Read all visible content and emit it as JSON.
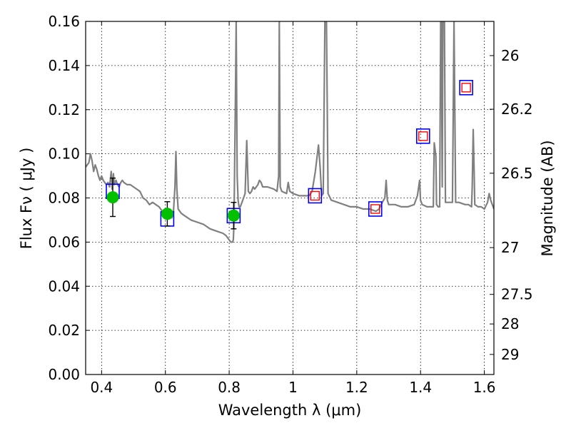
{
  "chart_data": {
    "type": "line",
    "xlabel": "Wavelength  λ (μm)",
    "ylabel": "Flux  Fν  ( μJy )",
    "ylabel_right": "Magnitude (AB)",
    "xlim": [
      0.35,
      1.63
    ],
    "ylim": [
      0,
      0.16
    ],
    "grid": true,
    "x_ticks": [
      {
        "value": 0.4,
        "label": "0.4"
      },
      {
        "value": 0.6,
        "label": "0.6"
      },
      {
        "value": 0.8,
        "label": "0.8"
      },
      {
        "value": 1.0,
        "label": "1"
      },
      {
        "value": 1.2,
        "label": "1.2"
      },
      {
        "value": 1.4,
        "label": "1.4"
      },
      {
        "value": 1.6,
        "label": "1.6"
      }
    ],
    "y_ticks": [
      {
        "value": 0.0,
        "label": "0.00"
      },
      {
        "value": 0.02,
        "label": "0.02"
      },
      {
        "value": 0.04,
        "label": "0.04"
      },
      {
        "value": 0.06,
        "label": "0.06"
      },
      {
        "value": 0.08,
        "label": "0.08"
      },
      {
        "value": 0.1,
        "label": "0.10"
      },
      {
        "value": 0.12,
        "label": "0.12"
      },
      {
        "value": 0.14,
        "label": "0.14"
      },
      {
        "value": 0.16,
        "label": "0.16"
      }
    ],
    "right_ticks": [
      {
        "label": "26",
        "flux": 0.1445
      },
      {
        "label": "26.2",
        "flux": 0.1202
      },
      {
        "label": "26.5",
        "flux": 0.0912
      },
      {
        "label": "27",
        "flux": 0.0575
      },
      {
        "label": "27.5",
        "flux": 0.0363
      },
      {
        "label": "28",
        "flux": 0.0229
      },
      {
        "label": "29",
        "flux": 0.0091
      }
    ],
    "colors": {
      "model": "#808080",
      "model_box": "#0000ff",
      "observed_box": "#0000ff",
      "detection": "#00c000",
      "upper_square": "#ff0000",
      "errorbar": "#000000"
    },
    "series": [
      {
        "kind": "model_spectrum",
        "points": [
          [
            0.35,
            0.094
          ],
          [
            0.355,
            0.095
          ],
          [
            0.36,
            0.096
          ],
          [
            0.365,
            0.1
          ],
          [
            0.37,
            0.097
          ],
          [
            0.375,
            0.092
          ],
          [
            0.38,
            0.095
          ],
          [
            0.385,
            0.093
          ],
          [
            0.39,
            0.09
          ],
          [
            0.395,
            0.088
          ],
          [
            0.4,
            0.09
          ],
          [
            0.405,
            0.088
          ],
          [
            0.41,
            0.087
          ],
          [
            0.415,
            0.086
          ],
          [
            0.42,
            0.087
          ],
          [
            0.425,
            0.085
          ],
          [
            0.43,
            0.092
          ],
          [
            0.433,
            0.084
          ],
          [
            0.437,
            0.091
          ],
          [
            0.44,
            0.086
          ],
          [
            0.445,
            0.088
          ],
          [
            0.45,
            0.086
          ],
          [
            0.455,
            0.085
          ],
          [
            0.46,
            0.087
          ],
          [
            0.465,
            0.088
          ],
          [
            0.47,
            0.087
          ],
          [
            0.48,
            0.086
          ],
          [
            0.49,
            0.086
          ],
          [
            0.5,
            0.085
          ],
          [
            0.51,
            0.084
          ],
          [
            0.52,
            0.083
          ],
          [
            0.53,
            0.08
          ],
          [
            0.54,
            0.079
          ],
          [
            0.55,
            0.077
          ],
          [
            0.56,
            0.078
          ],
          [
            0.57,
            0.077
          ],
          [
            0.58,
            0.076
          ],
          [
            0.59,
            0.074
          ],
          [
            0.6,
            0.073
          ],
          [
            0.61,
            0.072
          ],
          [
            0.62,
            0.071
          ],
          [
            0.625,
            0.073
          ],
          [
            0.63,
            0.085
          ],
          [
            0.633,
            0.101
          ],
          [
            0.636,
            0.084
          ],
          [
            0.64,
            0.075
          ],
          [
            0.65,
            0.073
          ],
          [
            0.66,
            0.072
          ],
          [
            0.68,
            0.07
          ],
          [
            0.7,
            0.069
          ],
          [
            0.72,
            0.068
          ],
          [
            0.74,
            0.066
          ],
          [
            0.76,
            0.065
          ],
          [
            0.78,
            0.064
          ],
          [
            0.79,
            0.063
          ],
          [
            0.8,
            0.061
          ],
          [
            0.805,
            0.06
          ],
          [
            0.81,
            0.06
          ],
          [
            0.813,
            0.061
          ],
          [
            0.815,
            0.068
          ],
          [
            0.818,
            0.105
          ],
          [
            0.82,
            0.13
          ],
          [
            0.822,
            0.16
          ],
          [
            0.825,
            0.09
          ],
          [
            0.828,
            0.079
          ],
          [
            0.831,
            0.076
          ],
          [
            0.835,
            0.076
          ],
          [
            0.84,
            0.078
          ],
          [
            0.845,
            0.08
          ],
          [
            0.85,
            0.082
          ],
          [
            0.855,
            0.106
          ],
          [
            0.86,
            0.083
          ],
          [
            0.865,
            0.082
          ],
          [
            0.87,
            0.083
          ],
          [
            0.875,
            0.085
          ],
          [
            0.88,
            0.084
          ],
          [
            0.89,
            0.086
          ],
          [
            0.895,
            0.088
          ],
          [
            0.9,
            0.087
          ],
          [
            0.905,
            0.085
          ],
          [
            0.92,
            0.085
          ],
          [
            0.94,
            0.084
          ],
          [
            0.95,
            0.083
          ],
          [
            0.955,
            0.09
          ],
          [
            0.957,
            0.16
          ],
          [
            0.96,
            0.085
          ],
          [
            0.965,
            0.083
          ],
          [
            0.98,
            0.082
          ],
          [
            0.985,
            0.087
          ],
          [
            0.99,
            0.083
          ],
          [
            1.0,
            0.082
          ],
          [
            1.02,
            0.081
          ],
          [
            1.05,
            0.081
          ],
          [
            1.06,
            0.083
          ],
          [
            1.07,
            0.092
          ],
          [
            1.08,
            0.104
          ],
          [
            1.085,
            0.094
          ],
          [
            1.09,
            0.081
          ],
          [
            1.095,
            0.082
          ],
          [
            1.1,
            0.16
          ],
          [
            1.105,
            0.16
          ],
          [
            1.11,
            0.082
          ],
          [
            1.12,
            0.079
          ],
          [
            1.14,
            0.078
          ],
          [
            1.16,
            0.077
          ],
          [
            1.18,
            0.076
          ],
          [
            1.2,
            0.076
          ],
          [
            1.22,
            0.075
          ],
          [
            1.24,
            0.075
          ],
          [
            1.26,
            0.074
          ],
          [
            1.27,
            0.075
          ],
          [
            1.28,
            0.078
          ],
          [
            1.288,
            0.08
          ],
          [
            1.292,
            0.088
          ],
          [
            1.296,
            0.079
          ],
          [
            1.3,
            0.077
          ],
          [
            1.32,
            0.077
          ],
          [
            1.34,
            0.076
          ],
          [
            1.36,
            0.076
          ],
          [
            1.38,
            0.077
          ],
          [
            1.39,
            0.081
          ],
          [
            1.397,
            0.088
          ],
          [
            1.4,
            0.079
          ],
          [
            1.405,
            0.077
          ],
          [
            1.42,
            0.076
          ],
          [
            1.44,
            0.076
          ],
          [
            1.443,
            0.105
          ],
          [
            1.448,
            0.099
          ],
          [
            1.45,
            0.077
          ],
          [
            1.455,
            0.076
          ],
          [
            1.46,
            0.076
          ],
          [
            1.463,
            0.16
          ],
          [
            1.465,
            0.16
          ],
          [
            1.468,
            0.085
          ],
          [
            1.47,
            0.16
          ],
          [
            1.475,
            0.16
          ],
          [
            1.478,
            0.078
          ],
          [
            1.5,
            0.078
          ],
          [
            1.505,
            0.16
          ],
          [
            1.51,
            0.078
          ],
          [
            1.52,
            0.078
          ],
          [
            1.54,
            0.077
          ],
          [
            1.55,
            0.077
          ],
          [
            1.56,
            0.076
          ],
          [
            1.562,
            0.085
          ],
          [
            1.565,
            0.111
          ],
          [
            1.568,
            0.092
          ],
          [
            1.57,
            0.077
          ],
          [
            1.58,
            0.076
          ],
          [
            1.59,
            0.076
          ],
          [
            1.6,
            0.075
          ],
          [
            1.61,
            0.078
          ],
          [
            1.615,
            0.082
          ],
          [
            1.62,
            0.079
          ],
          [
            1.63,
            0.075
          ]
        ]
      },
      {
        "kind": "model_synthetic_photometry",
        "points": [
          [
            0.435,
            0.083
          ],
          [
            0.606,
            0.0705
          ],
          [
            0.814,
            0.072
          ],
          [
            1.069,
            0.081
          ],
          [
            1.258,
            0.075
          ],
          [
            1.408,
            0.108
          ],
          [
            1.543,
            0.13
          ]
        ]
      },
      {
        "kind": "observed_detections",
        "points": [
          {
            "x": 0.435,
            "y": 0.0803,
            "yerr": 0.0087
          },
          {
            "x": 0.606,
            "y": 0.0728,
            "yerr": 0.0055
          },
          {
            "x": 0.814,
            "y": 0.072,
            "yerr": 0.006
          }
        ]
      },
      {
        "kind": "observed_nir",
        "points": [
          [
            1.069,
            0.081
          ],
          [
            1.258,
            0.075
          ],
          [
            1.408,
            0.108
          ],
          [
            1.543,
            0.13
          ]
        ]
      }
    ]
  }
}
